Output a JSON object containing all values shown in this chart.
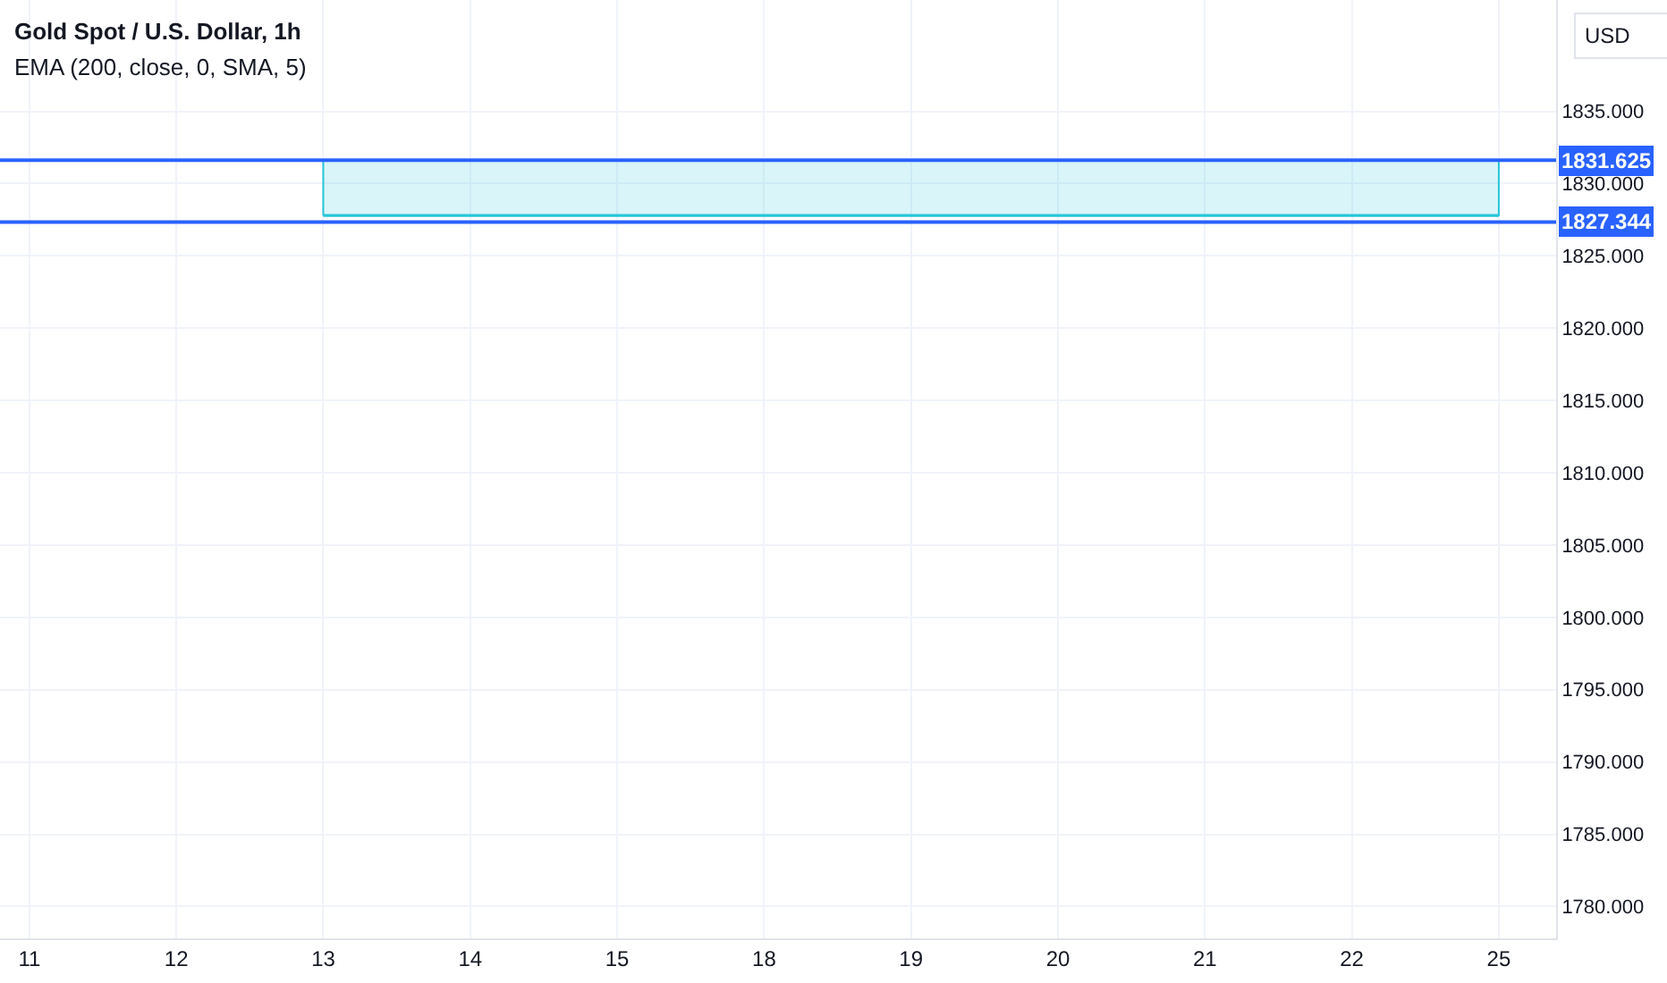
{
  "chart_data": {
    "type": "line",
    "title": "Gold Spot / U.S. Dollar, 1h",
    "subtitle": "EMA (200, close, 0, SMA, 5)",
    "ylabel": "USD",
    "categories": [
      "11",
      "12",
      "13",
      "14",
      "15",
      "18",
      "19",
      "20",
      "21",
      "22",
      "25"
    ],
    "ylim": [
      1777.8,
      1842.7
    ],
    "yticks": [
      {
        "value": 1780,
        "label": "1780.000"
      },
      {
        "value": 1785,
        "label": "1785.000"
      },
      {
        "value": 1790,
        "label": "1790.000"
      },
      {
        "value": 1795,
        "label": "1795.000"
      },
      {
        "value": 1800,
        "label": "1800.000"
      },
      {
        "value": 1805,
        "label": "1805.000"
      },
      {
        "value": 1810,
        "label": "1810.000"
      },
      {
        "value": 1815,
        "label": "1815.000"
      },
      {
        "value": 1820,
        "label": "1820.000"
      },
      {
        "value": 1825,
        "label": "1825.000"
      },
      {
        "value": 1830,
        "label": "1830.000"
      },
      {
        "value": 1835,
        "label": "1835.000"
      }
    ],
    "series": [
      {
        "color": "#26c6da",
        "x": [
          "13",
          "25"
        ],
        "values": [
          1827.8,
          1827.8
        ],
        "lower": [
          1827.8,
          1827.8
        ],
        "upper": [
          1831.625,
          1831.625
        ]
      }
    ],
    "ref_lines": [
      {
        "axis": "y",
        "value": 1831.625,
        "label": "1831.625",
        "color": "#2962ff"
      },
      {
        "axis": "y",
        "value": 1827.344,
        "label": "1827.344",
        "color": "#2962ff"
      }
    ],
    "grid": true
  }
}
